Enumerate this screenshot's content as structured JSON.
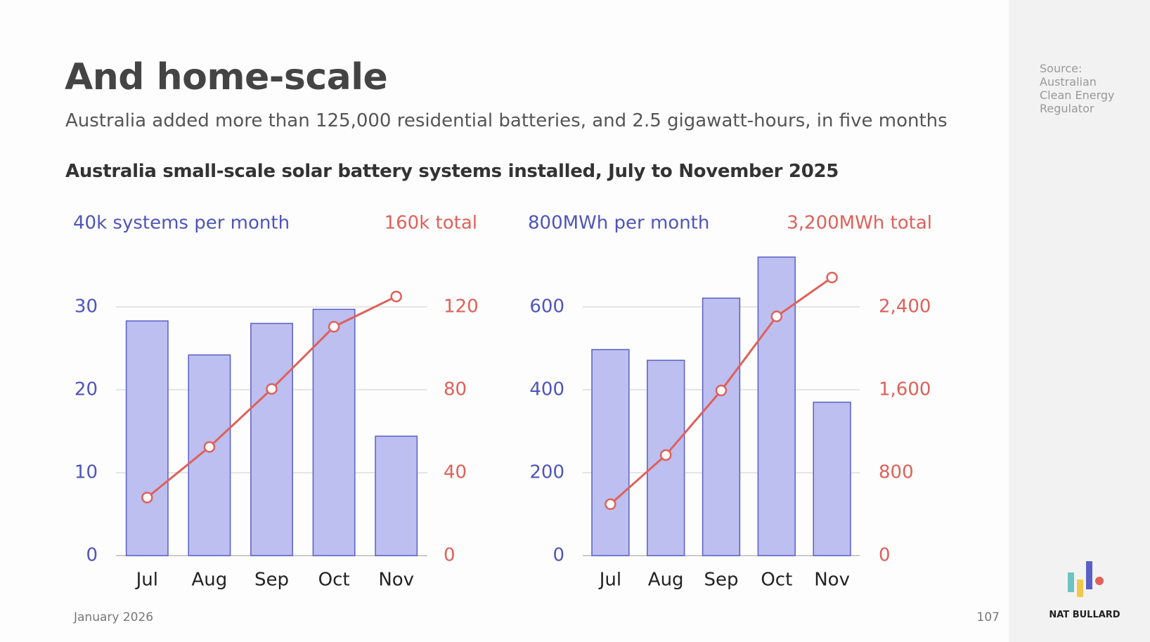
{
  "header": {
    "title": "And home-scale",
    "subtitle": "Australia added more than 125,000 residential batteries, and 2.5 gigawatt-hours, in five months",
    "chart_title": "Australia small-scale solar battery systems installed, July to November 2025"
  },
  "chart_data": [
    {
      "type": "combo",
      "ylabel": "40k systems per month",
      "y2label": "160k total",
      "categories": [
        "Jul",
        "Aug",
        "Sep",
        "Oct",
        "Nov"
      ],
      "series": [
        {
          "type": "bar",
          "color": "#bcbff0",
          "values": [
            28.3,
            24.2,
            28.0,
            29.7,
            14.4
          ]
        },
        {
          "type": "line",
          "color": "#e0605a",
          "axis": "y2",
          "values": [
            28,
            52.4,
            80.4,
            110.4,
            125
          ]
        }
      ],
      "ylim": [
        0,
        36
      ],
      "yticks": [
        0,
        10,
        20,
        30
      ],
      "y2lim": [
        0,
        144
      ],
      "y2ticks": [
        0,
        40,
        80,
        120
      ],
      "grid": true
    },
    {
      "type": "combo",
      "ylabel": "800MWh per month",
      "y2label": "3,200MWh total",
      "categories": [
        "Jul",
        "Aug",
        "Sep",
        "Oct",
        "Nov"
      ],
      "series": [
        {
          "type": "bar",
          "color": "#bcbff0",
          "values": [
            497,
            471,
            621,
            720,
            370
          ]
        },
        {
          "type": "line",
          "color": "#e0605a",
          "axis": "y2",
          "values": [
            496,
            970,
            1593,
            2308,
            2683
          ]
        }
      ],
      "ylim": [
        0,
        720
      ],
      "yticks": [
        0,
        200,
        400,
        600
      ],
      "y2lim": [
        0,
        2880
      ],
      "y2ticks": [
        0,
        800,
        {
          "value": 1600,
          "label": "1,600"
        },
        {
          "value": 2400,
          "label": "2,400"
        }
      ],
      "grid": true
    }
  ],
  "footer": {
    "date": "January 2026",
    "page": "107"
  },
  "sidebar": {
    "source": "Source: Australian Clean Energy Regulator",
    "brand": "NAT BULLARD"
  }
}
